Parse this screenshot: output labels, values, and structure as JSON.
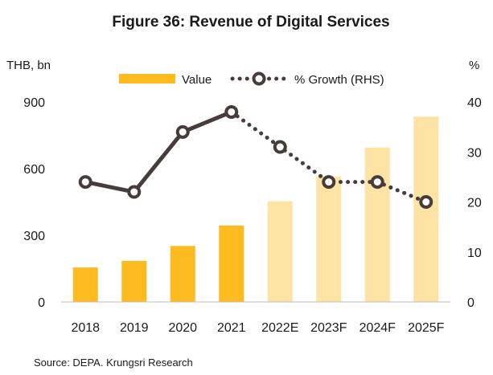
{
  "chart_data": {
    "type": "bar",
    "title": "Figure 36: Revenue of Digital Services",
    "y_left_label": "THB, bn",
    "y_right_label": "%",
    "categories": [
      "2018",
      "2019",
      "2020",
      "2021",
      "2022E",
      "2023F",
      "2024F",
      "2025F"
    ],
    "series": [
      {
        "name": "Value",
        "chart_type": "bar",
        "axis": "left",
        "values": [
          155,
          185,
          252,
          344,
          453,
          565,
          695,
          834
        ]
      },
      {
        "name": "% Growth (RHS)",
        "chart_type": "line",
        "axis": "right",
        "values": [
          24,
          22,
          34,
          38,
          31,
          24,
          24,
          20
        ]
      }
    ],
    "y_left": {
      "ylim": [
        0,
        900
      ],
      "ticks": [
        "0",
        "300",
        "600",
        "900"
      ]
    },
    "y_right": {
      "ylim": [
        0,
        40
      ],
      "ticks": [
        "0",
        "10",
        "20",
        "30",
        "40"
      ]
    },
    "actual_count": 4,
    "colors": {
      "bar_actual": "#fdbb20",
      "bar_forecast": "#fee4a4",
      "line": "#463c3b",
      "marker_fill": "#ffffff"
    },
    "legend_position": "top-center",
    "grid": false,
    "source": "Source: DEPA. Krungsri Research"
  }
}
